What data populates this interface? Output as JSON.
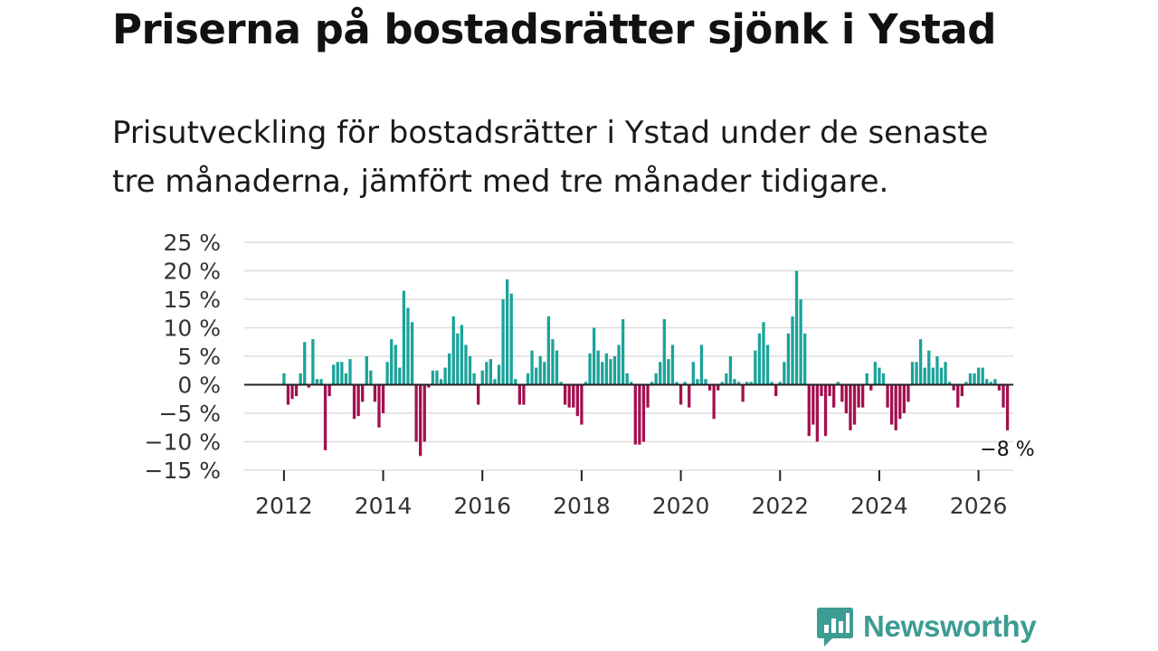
{
  "header": {
    "title": "Priserna på bostadsrätter sjönk i Ystad",
    "subtitle": "Prisutveckling för bostadsrätter i Ystad under de senaste tre månaderna, jämfört med tre månader tidigare."
  },
  "brand": {
    "name": "Newsworthy",
    "color": "#3d9c94",
    "icon": "bar-chart-speech-bubble-icon"
  },
  "chart_data": {
    "type": "bar",
    "title": "",
    "xlabel": "",
    "ylabel": "",
    "ylim": [
      -15,
      25
    ],
    "yticks": [
      25,
      20,
      15,
      10,
      5,
      0,
      -5,
      -10,
      -15
    ],
    "ytick_labels": [
      "25 %",
      "20 %",
      "15 %",
      "10 %",
      "5 %",
      "0 %",
      "−5 %",
      "−10 %",
      "−15 %"
    ],
    "xlim": [
      2011.2,
      2026.7
    ],
    "xticks": [
      2012,
      2014,
      2016,
      2018,
      2020,
      2022,
      2024,
      2026
    ],
    "xtick_labels": [
      "2012",
      "2014",
      "2016",
      "2018",
      "2020",
      "2022",
      "2024",
      "2026"
    ],
    "grid": true,
    "colors": {
      "positive": "#1aa39a",
      "negative": "#a3104f",
      "grid": "#dddddd",
      "zero_line": "#222222"
    },
    "start": 2012.0,
    "step_months": 1,
    "end_label": "−8 %",
    "values": [
      2,
      -3.5,
      -2.5,
      -2,
      2,
      7.5,
      -0.5,
      8,
      1,
      1,
      -11.5,
      -2,
      3.5,
      4,
      4,
      2,
      4.5,
      -6,
      -5.5,
      -3,
      5,
      2.5,
      -3,
      -7.5,
      -5,
      4,
      8,
      7,
      3,
      16.5,
      13.5,
      11,
      -10,
      -12.5,
      -10,
      -0.5,
      2.5,
      2.5,
      1,
      3,
      5.5,
      12,
      9,
      10.5,
      7,
      5,
      2,
      -3.5,
      2.5,
      4,
      4.5,
      1,
      3.5,
      15,
      18.5,
      16,
      1,
      -3.5,
      -3.5,
      2,
      6,
      3,
      5,
      4,
      12,
      8,
      6,
      0.5,
      -3.5,
      -4,
      -4,
      -5.5,
      -7,
      0.5,
      5.5,
      10,
      6,
      4,
      5.5,
      4.5,
      5,
      7,
      11.5,
      2,
      0.5,
      -10.5,
      -10.5,
      -10,
      -4,
      0.5,
      2,
      4,
      11.5,
      4.5,
      7,
      0.5,
      -3.5,
      0.5,
      -4,
      4,
      1,
      7,
      1,
      -1,
      -6,
      -1,
      0.5,
      2,
      5,
      1,
      0.5,
      -3,
      0.5,
      0.5,
      6,
      9,
      11,
      7,
      0.5,
      -2,
      0.5,
      4,
      9,
      12,
      20,
      15,
      9,
      -9,
      -7,
      -10,
      -2,
      -9,
      -2,
      -4,
      0.5,
      -3,
      -5,
      -8,
      -7,
      -4,
      -4,
      2,
      -1,
      4,
      3,
      2,
      -4,
      -7,
      -8,
      -6,
      -5,
      -3,
      4,
      4,
      8,
      3,
      6,
      3,
      5,
      3,
      4,
      0.5,
      -1,
      -4,
      -2,
      0.5,
      2,
      2,
      3,
      3,
      1,
      0.5,
      1,
      -1,
      -4,
      -8
    ]
  }
}
